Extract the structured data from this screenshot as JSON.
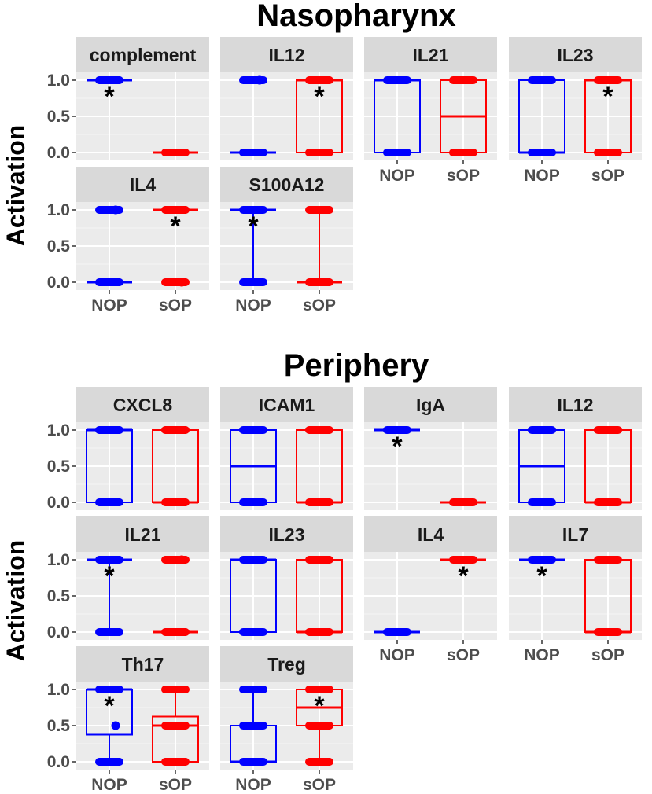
{
  "figure": {
    "y_axis_label": "Activation",
    "group_labels": [
      "NOP",
      "sOP"
    ],
    "y_ticks": [
      "0.0",
      "0.5",
      "1.0"
    ]
  },
  "colors": {
    "NOP": "#0000ff",
    "sOP": "#ff0000",
    "panel_bg": "#ebebeb",
    "strip_bg": "#d9d9d9",
    "grid": "#ffffff"
  },
  "chart_data": [
    {
      "type": "boxplot",
      "title": "Nasopharynx",
      "ylabel": "Activation",
      "ylim": [
        0,
        1
      ],
      "groups": [
        "NOP",
        "sOP"
      ],
      "panels": [
        {
          "name": "complement",
          "star": "NOP",
          "NOP": {
            "points": [
              1
            ],
            "outliers": [],
            "box": [
              1,
              1,
              1,
              1,
              1
            ]
          },
          "sOP": {
            "points": [
              0
            ],
            "outliers": [],
            "box": [
              0,
              0,
              0,
              0,
              0
            ]
          }
        },
        {
          "name": "IL12",
          "star": "sOP",
          "NOP": {
            "points": [
              0,
              1
            ],
            "outliers": [
              1
            ],
            "box": [
              0,
              0,
              0,
              0,
              0
            ]
          },
          "sOP": {
            "points": [
              0,
              1
            ],
            "outliers": [],
            "box": [
              0,
              0,
              1,
              1,
              1
            ]
          }
        },
        {
          "name": "IL21",
          "star": null,
          "NOP": {
            "points": [
              0,
              1
            ],
            "outliers": [],
            "box": [
              0,
              0,
              1,
              1,
              1
            ]
          },
          "sOP": {
            "points": [
              0,
              1
            ],
            "outliers": [],
            "box": [
              0,
              0,
              0.5,
              1,
              1
            ]
          }
        },
        {
          "name": "IL23",
          "star": "sOP",
          "NOP": {
            "points": [
              0,
              1
            ],
            "outliers": [],
            "box": [
              0,
              0,
              0,
              1,
              1
            ]
          },
          "sOP": {
            "points": [
              0,
              1
            ],
            "outliers": [],
            "box": [
              0,
              0,
              1,
              1,
              1
            ]
          }
        },
        {
          "name": "IL4",
          "star": "sOP",
          "NOP": {
            "points": [
              0,
              1
            ],
            "outliers": [
              1
            ],
            "box": [
              0,
              0,
              0,
              0,
              0
            ]
          },
          "sOP": {
            "points": [
              0,
              1
            ],
            "outliers": [
              0
            ],
            "box": [
              1,
              1,
              1,
              1,
              1
            ]
          }
        },
        {
          "name": "S100A12",
          "star": "NOP",
          "NOP": {
            "points": [
              0,
              1
            ],
            "outliers": [],
            "box": [
              0,
              1,
              1,
              1,
              1
            ]
          },
          "sOP": {
            "points": [
              0,
              1
            ],
            "outliers": [],
            "box": [
              0,
              0,
              0,
              0,
              1
            ]
          }
        }
      ]
    },
    {
      "type": "boxplot",
      "title": "Periphery",
      "ylabel": "Activation",
      "ylim": [
        0,
        1
      ],
      "groups": [
        "NOP",
        "sOP"
      ],
      "panels": [
        {
          "name": "CXCL8",
          "star": null,
          "NOP": {
            "points": [
              0,
              1
            ],
            "outliers": [],
            "box": [
              0,
              0,
              1,
              1,
              1
            ]
          },
          "sOP": {
            "points": [
              0,
              1
            ],
            "outliers": [],
            "box": [
              0,
              0,
              0,
              1,
              1
            ]
          }
        },
        {
          "name": "ICAM1",
          "star": null,
          "NOP": {
            "points": [
              0,
              1
            ],
            "outliers": [],
            "box": [
              0,
              0,
              0.5,
              1,
              1
            ]
          },
          "sOP": {
            "points": [
              0,
              1
            ],
            "outliers": [],
            "box": [
              0,
              0,
              0,
              1,
              1
            ]
          }
        },
        {
          "name": "IgA",
          "star": "NOP",
          "NOP": {
            "points": [
              1
            ],
            "outliers": [],
            "box": [
              1,
              1,
              1,
              1,
              1
            ]
          },
          "sOP": {
            "points": [
              0
            ],
            "outliers": [],
            "box": [
              0,
              0,
              0,
              0,
              0
            ]
          }
        },
        {
          "name": "IL12",
          "star": null,
          "NOP": {
            "points": [
              0,
              1
            ],
            "outliers": [],
            "box": [
              0,
              0,
              0.5,
              1,
              1
            ]
          },
          "sOP": {
            "points": [
              0,
              1
            ],
            "outliers": [],
            "box": [
              0,
              0,
              0,
              1,
              1
            ]
          }
        },
        {
          "name": "IL21",
          "star": "NOP",
          "NOP": {
            "points": [
              0,
              1
            ],
            "outliers": [],
            "box": [
              0,
              1,
              1,
              1,
              1
            ]
          },
          "sOP": {
            "points": [
              0,
              1
            ],
            "outliers": [
              1
            ],
            "box": [
              0,
              0,
              0,
              0,
              0
            ]
          }
        },
        {
          "name": "IL23",
          "star": null,
          "NOP": {
            "points": [
              0,
              1
            ],
            "outliers": [],
            "box": [
              0,
              0,
              1,
              1,
              1
            ]
          },
          "sOP": {
            "points": [
              0,
              1
            ],
            "outliers": [],
            "box": [
              0,
              0,
              0,
              1,
              1
            ]
          }
        },
        {
          "name": "IL4",
          "star": "sOP",
          "NOP": {
            "points": [
              0
            ],
            "outliers": [],
            "box": [
              0,
              0,
              0,
              0,
              0
            ]
          },
          "sOP": {
            "points": [
              1
            ],
            "outliers": [],
            "box": [
              1,
              1,
              1,
              1,
              1
            ]
          }
        },
        {
          "name": "IL7",
          "star": "NOP",
          "NOP": {
            "points": [
              1
            ],
            "outliers": [],
            "box": [
              1,
              1,
              1,
              1,
              1
            ]
          },
          "sOP": {
            "points": [
              0,
              1
            ],
            "outliers": [],
            "box": [
              0,
              0,
              0,
              1,
              1
            ]
          }
        },
        {
          "name": "Th17",
          "star": "NOP",
          "NOP": {
            "points": [
              0,
              1
            ],
            "outliers": [
              0.5
            ],
            "box": [
              0,
              0.375,
              1,
              1,
              1
            ]
          },
          "sOP": {
            "points": [
              0,
              0.5,
              1
            ],
            "outliers": [],
            "box": [
              0,
              0,
              0.5,
              0.625,
              1
            ]
          }
        },
        {
          "name": "Treg",
          "star": "sOP",
          "NOP": {
            "points": [
              0,
              0.5,
              1
            ],
            "outliers": [],
            "box": [
              0,
              0,
              0,
              0.5,
              1
            ]
          },
          "sOP": {
            "points": [
              0,
              0.5,
              1
            ],
            "outliers": [],
            "box": [
              0,
              0.5,
              0.75,
              1,
              1
            ]
          }
        }
      ]
    }
  ]
}
